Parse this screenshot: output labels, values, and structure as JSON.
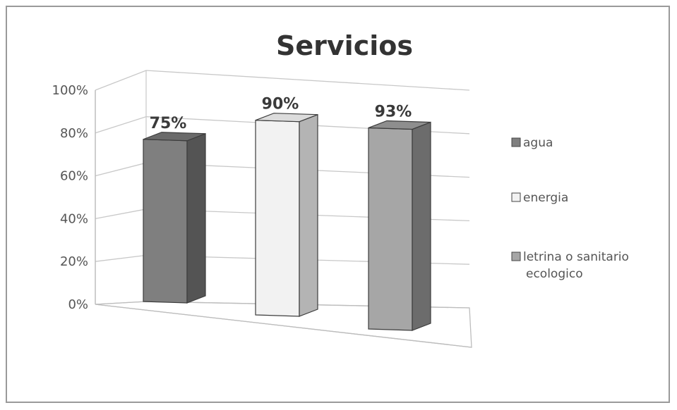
{
  "chart_data": {
    "type": "bar",
    "title": "Servicios",
    "categories": [
      "agua",
      "energia",
      "letrina o sanitario ecologico"
    ],
    "values": [
      75,
      90,
      93
    ],
    "value_labels": [
      "75%",
      "90%",
      "93%"
    ],
    "y_ticks": [
      "0%",
      "20%",
      "40%",
      "60%",
      "80%",
      "100%"
    ],
    "ylim": [
      0,
      100
    ],
    "grid": true,
    "legend": {
      "position": "right",
      "entries": [
        {
          "lines": [
            "agua"
          ],
          "color": "#7f7f7f"
        },
        {
          "lines": [
            "energia"
          ],
          "color": "#f2f2f2"
        },
        {
          "lines": [
            "letrina o sanitario",
            "ecologico"
          ],
          "color": "#a6a6a6"
        }
      ]
    },
    "colors": {
      "front": [
        "#7f7f7f",
        "#f2f2f2",
        "#a6a6a6"
      ],
      "side": [
        "#545454",
        "#b4b4b4",
        "#6c6c6c"
      ],
      "top": [
        "#6a6a6a",
        "#dcdcdc",
        "#8e8e8e"
      ]
    }
  }
}
